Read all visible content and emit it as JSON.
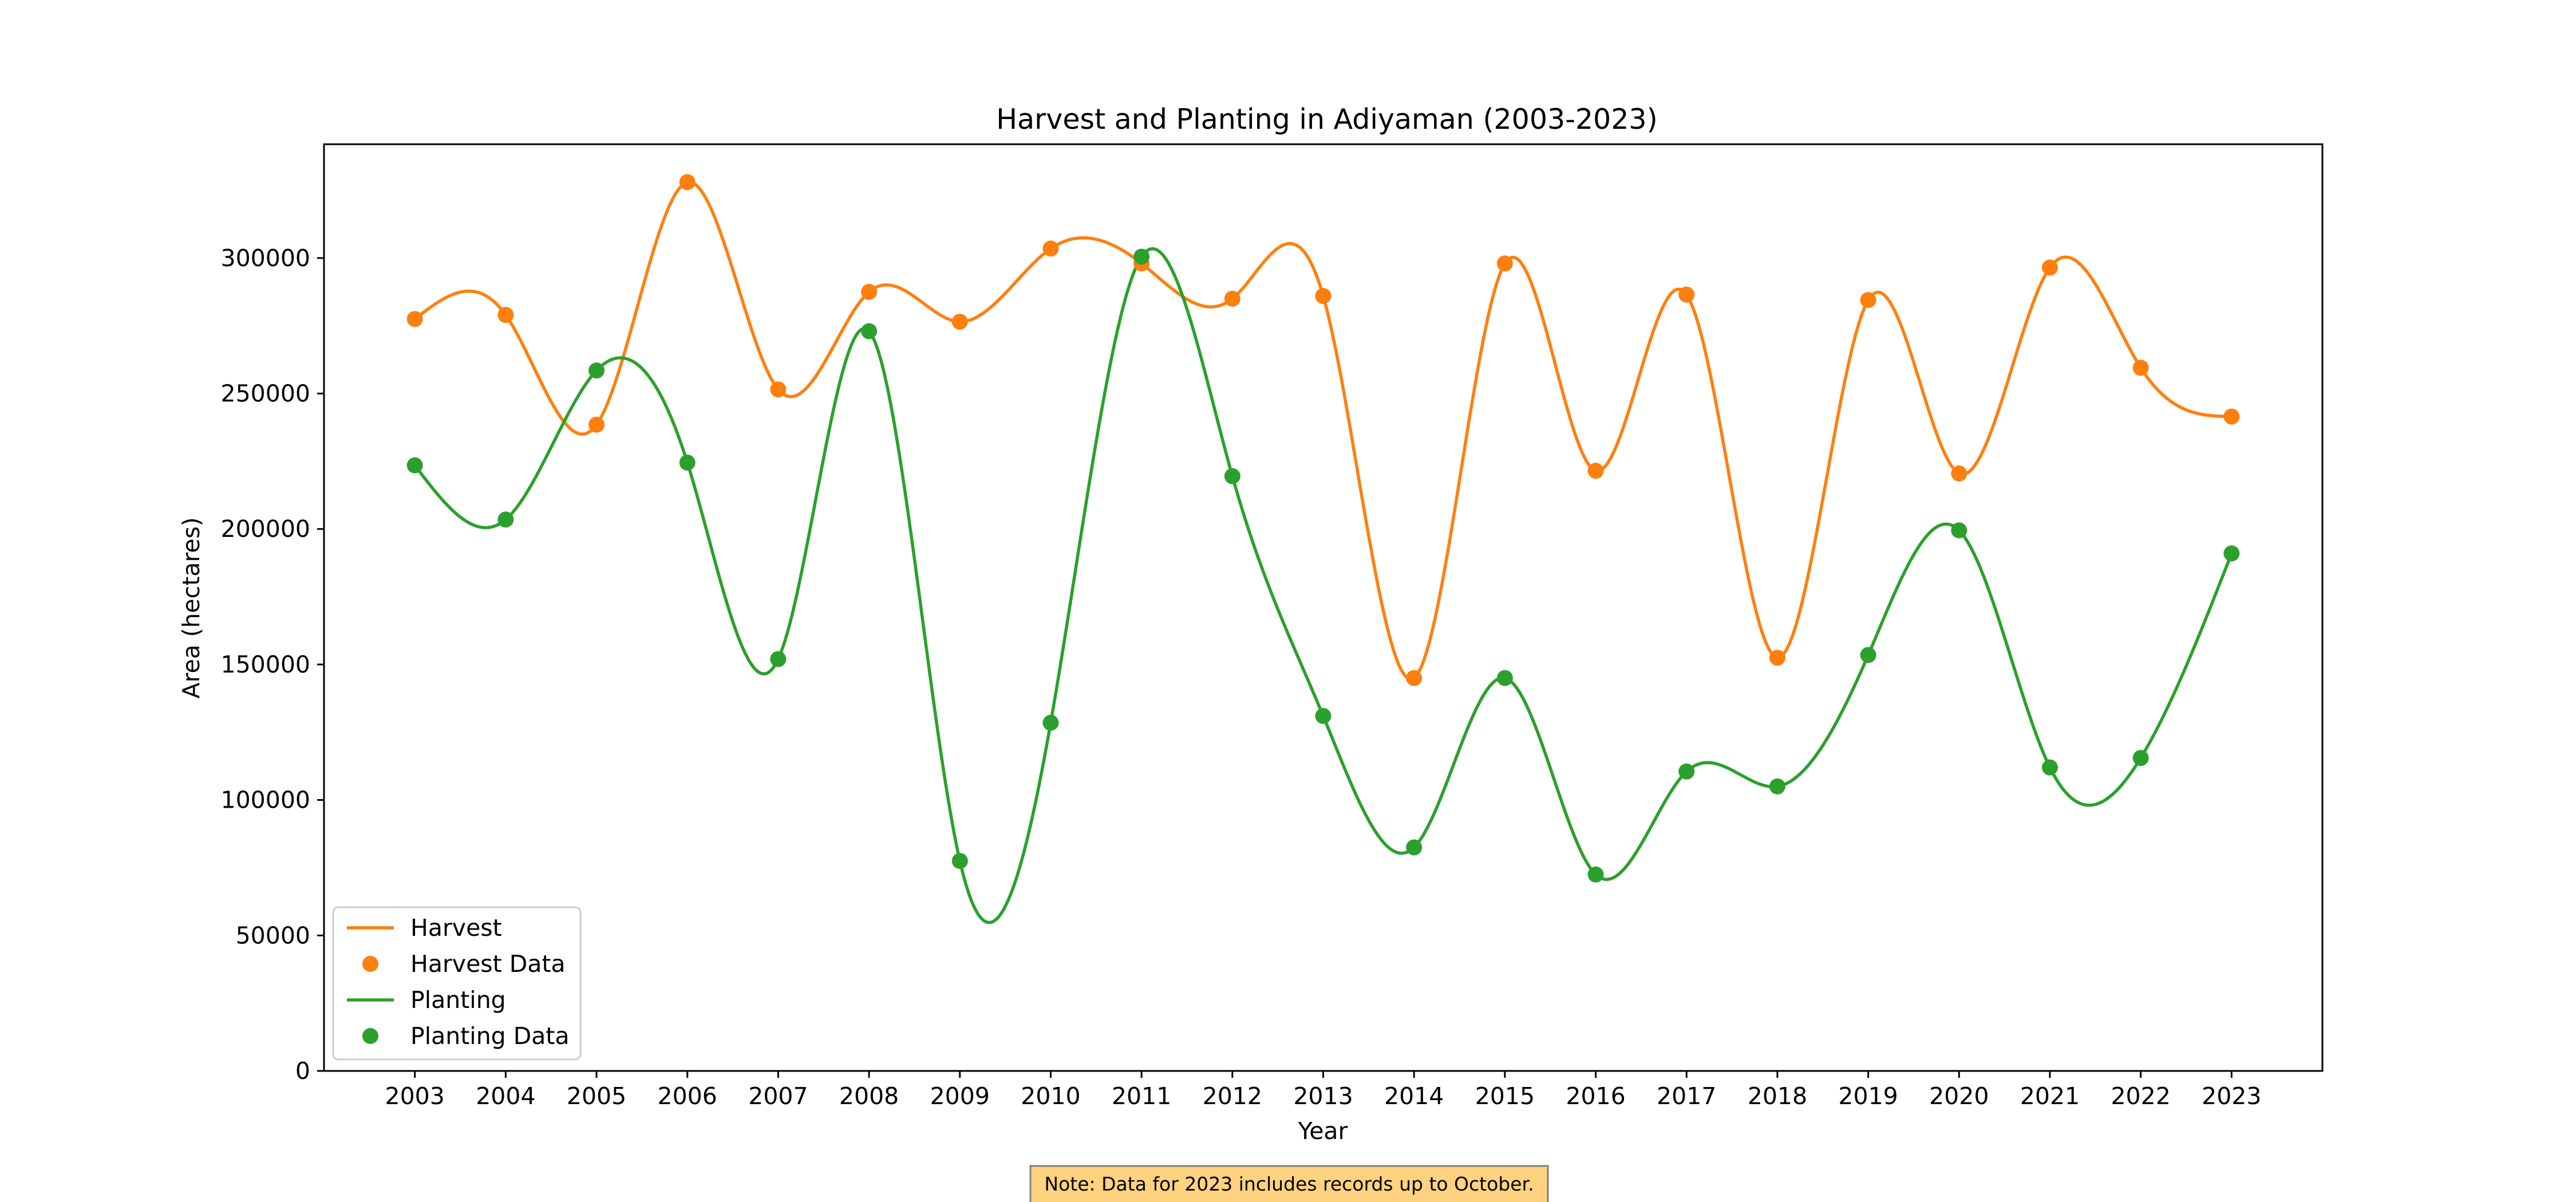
{
  "chart_data": {
    "type": "line",
    "title": "Harvest and Planting in Adiyaman (2003-2023)",
    "xlabel": "Year",
    "ylabel": "Area (hectares)",
    "x": [
      2003,
      2004,
      2005,
      2006,
      2007,
      2008,
      2009,
      2010,
      2011,
      2012,
      2013,
      2014,
      2015,
      2016,
      2017,
      2018,
      2019,
      2020,
      2021,
      2022,
      2023
    ],
    "xlim": [
      2002,
      2024
    ],
    "ylim": [
      0,
      342000
    ],
    "yticks": [
      0,
      50000,
      100000,
      150000,
      200000,
      250000,
      300000
    ],
    "series": [
      {
        "name": "Harvest",
        "marker_label": "Harvest Data",
        "color": "#ff7f0e",
        "values": [
          277500,
          279000,
          238500,
          328000,
          251500,
          287500,
          276500,
          303500,
          298000,
          285000,
          286000,
          145000,
          298000,
          221500,
          286500,
          152500,
          284500,
          220500,
          296500,
          259500,
          241500
        ]
      },
      {
        "name": "Planting",
        "marker_label": "Planting Data",
        "color": "#2ca02c",
        "values": [
          223500,
          203500,
          258500,
          224500,
          152000,
          273000,
          77500,
          128500,
          300500,
          219500,
          131000,
          82500,
          145000,
          72500,
          110500,
          105000,
          153500,
          199500,
          112000,
          115500,
          191000
        ]
      }
    ],
    "grid": false,
    "legend_position": "lower-left",
    "note": "Note: Data for 2023 includes records up to October.",
    "note_color": "#ffd27f"
  }
}
